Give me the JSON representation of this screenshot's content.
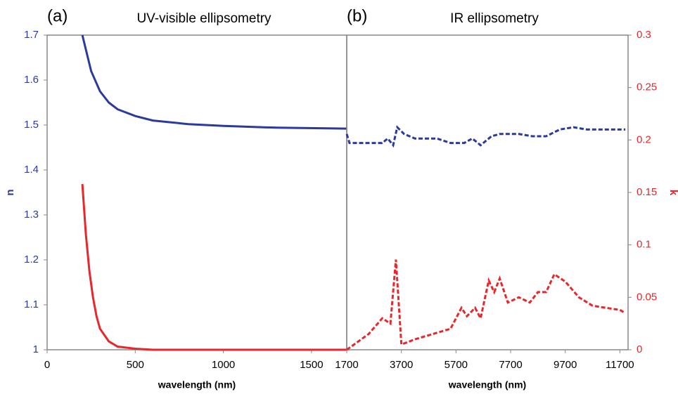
{
  "chart_data": [
    {
      "type": "line",
      "panel_label": "(a)",
      "title": "UV-visible ellipsometry",
      "xlabel": "wavelength (nm)",
      "ylabel": "n",
      "ylabel_color": "#2b3a9e",
      "xlim": [
        0,
        1700
      ],
      "xticks": [
        0,
        500,
        1000,
        1500
      ],
      "ylim": [
        1,
        1.7
      ],
      "yticks": [
        1,
        1.1,
        1.2,
        1.3,
        1.4,
        1.5,
        1.6,
        1.7
      ],
      "ytick_color": "#2b3a9e",
      "y2lim": [
        0,
        0.3
      ],
      "series": [
        {
          "color": "#2b3a9e",
          "style": "solid",
          "axis": "y",
          "x": [
            200,
            250,
            300,
            350,
            400,
            500,
            600,
            800,
            1000,
            1300,
            1700
          ],
          "values": [
            1.7,
            1.62,
            1.575,
            1.55,
            1.535,
            1.52,
            1.51,
            1.502,
            1.498,
            1.494,
            1.492
          ]
        },
        {
          "color": "#e8262b",
          "style": "solid",
          "axis": "y2",
          "x": [
            200,
            220,
            240,
            260,
            280,
            300,
            350,
            400,
            500,
            600,
            1700
          ],
          "values": [
            0.158,
            0.11,
            0.075,
            0.05,
            0.032,
            0.02,
            0.008,
            0.003,
            0.001,
            0,
            0
          ]
        }
      ]
    },
    {
      "type": "line",
      "panel_label": "(b)",
      "title": "IR ellipsometry",
      "xlabel": "wavelength (nm)",
      "y2label": "k",
      "y2label_color": "#e8262b",
      "xlim": [
        1700,
        12000
      ],
      "xticks": [
        1700,
        3700,
        5700,
        7700,
        9700,
        11700
      ],
      "ylim": [
        1,
        1.7
      ],
      "y2lim": [
        0,
        0.3
      ],
      "y2ticks": [
        0,
        0.05,
        0.1,
        0.15,
        0.2,
        0.25,
        0.3
      ],
      "y2tick_color": "#e8262b",
      "series": [
        {
          "color": "#2b3a9e",
          "style": "dashed",
          "axis": "y",
          "x": [
            1700,
            1800,
            2500,
            3000,
            3200,
            3400,
            3550,
            3800,
            4200,
            5000,
            5500,
            6000,
            6300,
            6600,
            7000,
            7300,
            8000,
            8500,
            9000,
            9500,
            10000,
            10500,
            11000,
            11500,
            11900
          ],
          "values": [
            1.48,
            1.46,
            1.46,
            1.46,
            1.47,
            1.455,
            1.495,
            1.48,
            1.47,
            1.47,
            1.46,
            1.46,
            1.47,
            1.455,
            1.475,
            1.48,
            1.48,
            1.475,
            1.475,
            1.49,
            1.495,
            1.49,
            1.49,
            1.49,
            1.49
          ]
        },
        {
          "color": "#e8262b",
          "style": "dashed",
          "axis": "y2",
          "x": [
            1700,
            2500,
            3000,
            3300,
            3500,
            3700,
            4200,
            5500,
            5900,
            6100,
            6400,
            6600,
            6900,
            7100,
            7300,
            7600,
            8000,
            8400,
            8700,
            9000,
            9300,
            9700,
            10200,
            10700,
            11200,
            11700,
            11900
          ],
          "values": [
            0,
            0.015,
            0.03,
            0.025,
            0.086,
            0.005,
            0.01,
            0.02,
            0.04,
            0.032,
            0.04,
            0.03,
            0.066,
            0.055,
            0.068,
            0.045,
            0.05,
            0.045,
            0.055,
            0.055,
            0.072,
            0.065,
            0.05,
            0.042,
            0.04,
            0.038,
            0.035
          ]
        }
      ]
    }
  ]
}
